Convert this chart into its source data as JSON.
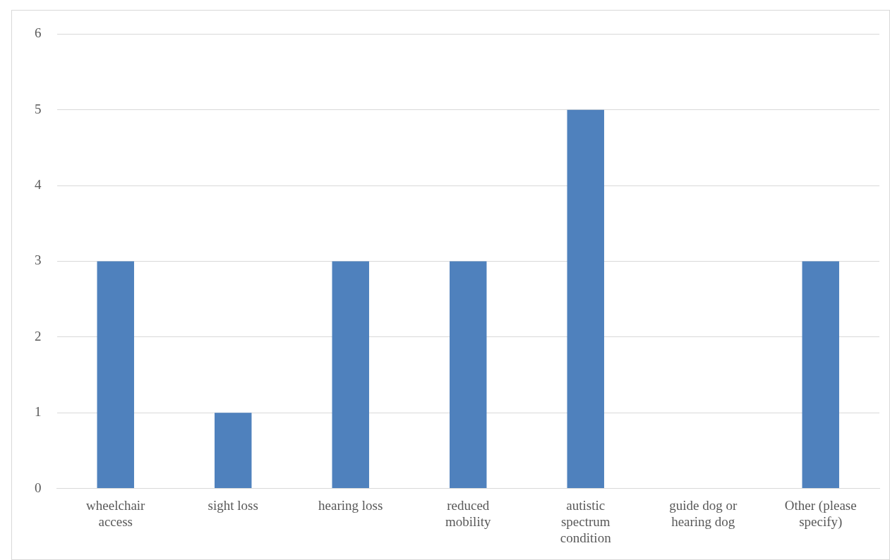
{
  "chart_data": {
    "type": "bar",
    "categories": [
      "wheelchair access",
      "sight loss",
      "hearing loss",
      "reduced mobility",
      "autistic spectrum condition",
      "guide dog or hearing dog",
      "Other (please specify)"
    ],
    "values": [
      3,
      1,
      3,
      3,
      5,
      0,
      3
    ],
    "color": "#4f81bd",
    "ylim": [
      0,
      6
    ],
    "yticks": [
      0,
      1,
      2,
      3,
      4,
      5,
      6
    ],
    "grid": "y",
    "legend": false
  }
}
